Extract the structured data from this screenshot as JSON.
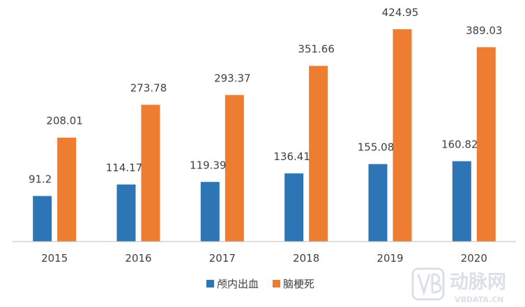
{
  "chart_data": {
    "type": "bar",
    "title": "",
    "xlabel": "",
    "ylabel": "",
    "categories": [
      "2015",
      "2016",
      "2017",
      "2018",
      "2019",
      "2020"
    ],
    "series": [
      {
        "name": "颅内出血",
        "color": "#2e75b6",
        "values": [
          91.2,
          114.17,
          119.39,
          136.41,
          155.08,
          160.82
        ]
      },
      {
        "name": "脑梗死",
        "color": "#ed7d31",
        "values": [
          208.01,
          273.78,
          293.37,
          351.66,
          424.95,
          389.03
        ]
      }
    ],
    "data_labels": [
      [
        "91.2",
        "114.17",
        "119.39",
        "136.41",
        "155.08",
        "160.82"
      ],
      [
        "208.01",
        "273.78",
        "293.37",
        "351.66",
        "424.95",
        "389.03"
      ]
    ],
    "ylim": [
      0,
      450
    ],
    "grid": false,
    "legend": "bottom-center"
  },
  "watermark": {
    "logo_text": "动脉网",
    "sub_text": "VBDATA.CN"
  }
}
